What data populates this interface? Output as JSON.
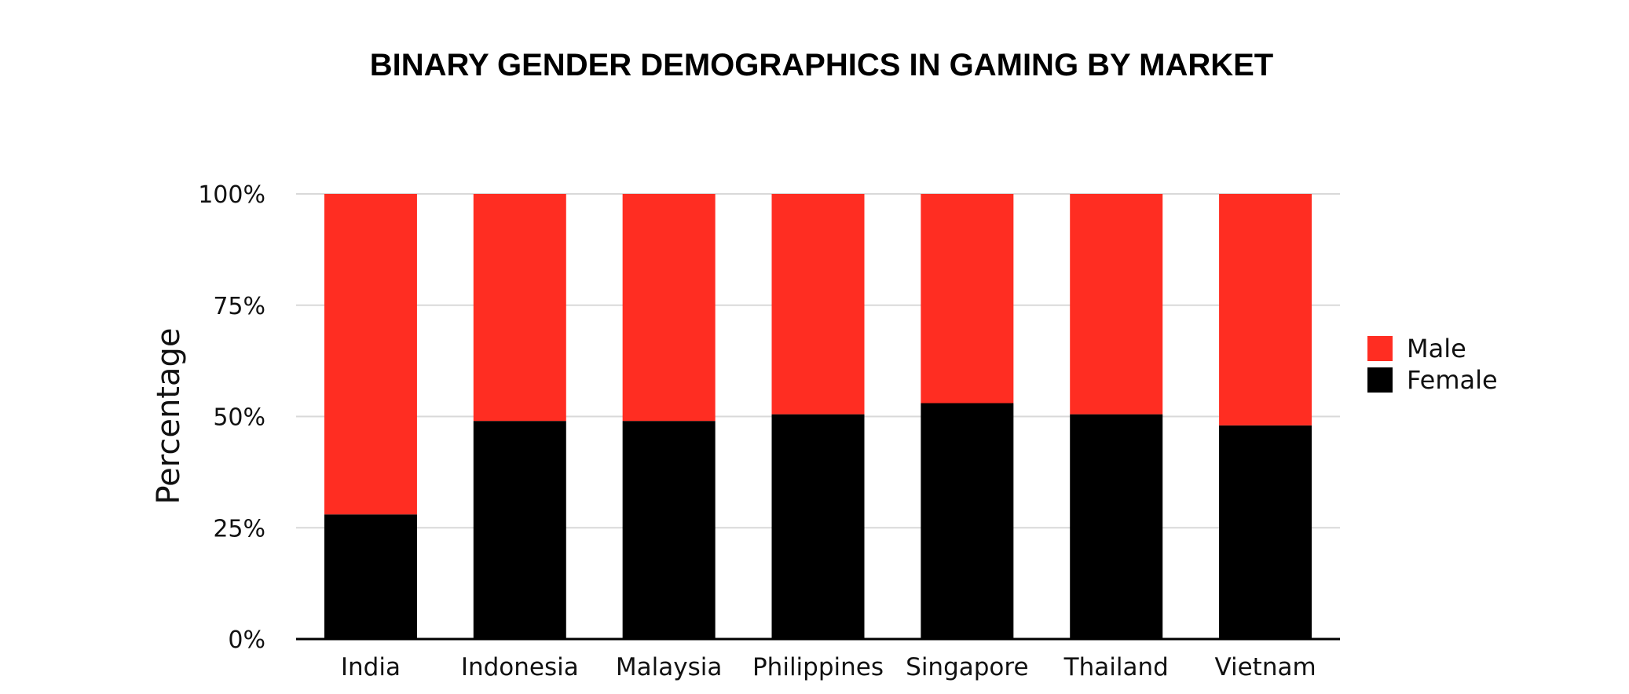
{
  "chart_data": {
    "type": "bar",
    "stacked": true,
    "title": "BINARY GENDER DEMOGRAPHICS IN GAMING BY MARKET",
    "xlabel": "",
    "ylabel": "Percentage",
    "ylim": [
      0,
      100
    ],
    "yticks": [
      0,
      25,
      50,
      75,
      100
    ],
    "ytick_labels": [
      "0%",
      "25%",
      "50%",
      "75%",
      "100%"
    ],
    "grid": true,
    "legend_position": "right",
    "categories": [
      "India",
      "Indonesia",
      "Malaysia",
      "Philippines",
      "Singapore",
      "Thailand",
      "Vietnam"
    ],
    "series": [
      {
        "name": "Female",
        "color": "#000000",
        "values": [
          28,
          49,
          49,
          50.5,
          53,
          50.5,
          48
        ]
      },
      {
        "name": "Male",
        "color": "#ff2d22",
        "values": [
          72,
          51,
          51,
          49.5,
          47,
          49.5,
          52
        ]
      }
    ],
    "legend": [
      "Male",
      "Female"
    ]
  }
}
